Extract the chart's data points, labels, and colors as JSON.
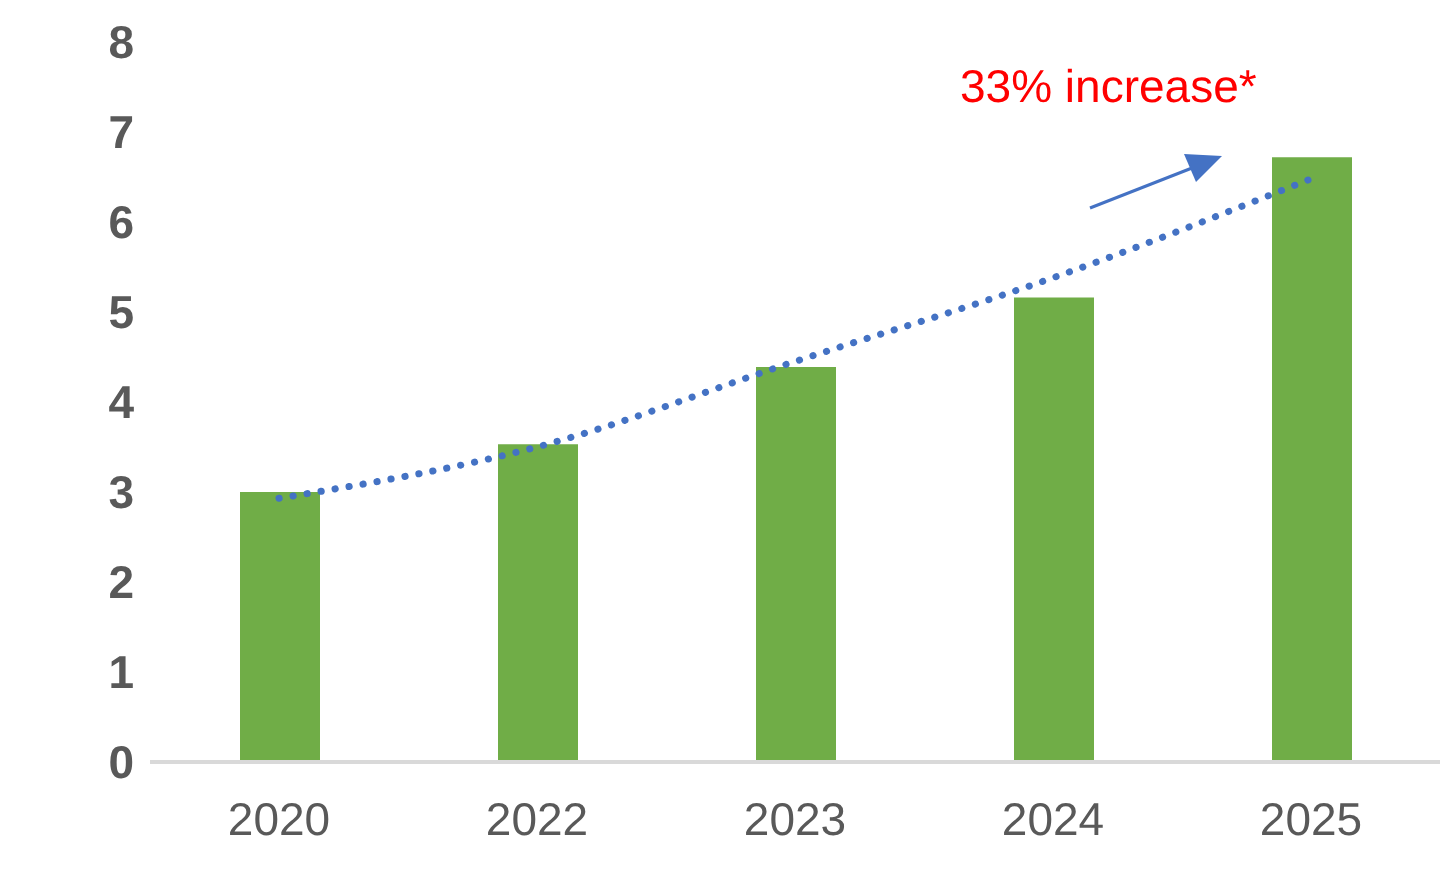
{
  "chart_data": {
    "type": "bar",
    "categories": [
      "2020",
      "2022",
      "2023",
      "2024",
      "2025"
    ],
    "series": [
      {
        "color": "#70ad47",
        "values": [
          3.0,
          3.53,
          4.39,
          5.16,
          6.72
        ]
      },
      {
        "type": "line",
        "color": "#4472c4",
        "line_style": "dotted",
        "marker": "none",
        "values": [
          2.93,
          3.5,
          4.45,
          5.38,
          6.48
        ]
      }
    ],
    "ylim": [
      0,
      8
    ],
    "yticks": [
      0,
      1,
      2,
      3,
      4,
      5,
      6,
      7,
      8
    ],
    "grid": false,
    "annotations": [
      "33% increase*"
    ]
  }
}
